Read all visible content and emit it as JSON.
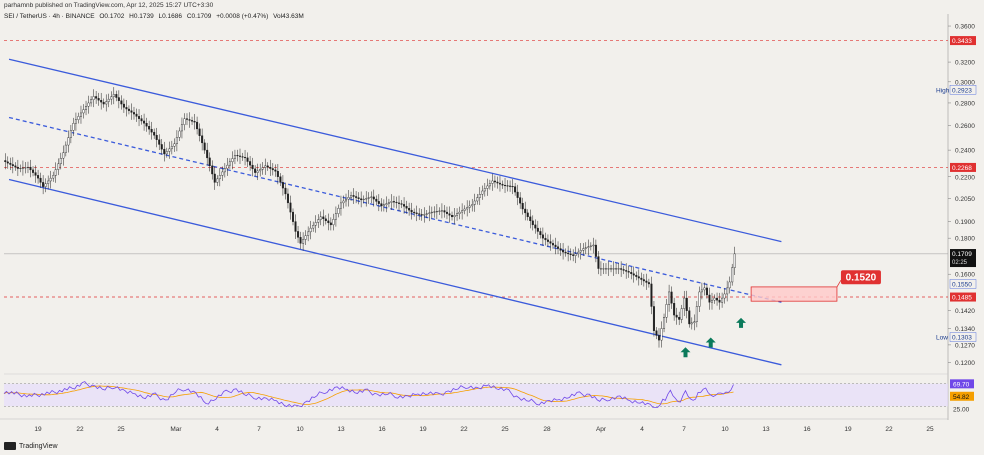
{
  "header": {
    "author_line": "parhamnb published on TradingView.com, Apr 12, 2025 15:27 UTC+3:30"
  },
  "legend": {
    "symbol": "SEI / TetherUS · 4h · BINANCE",
    "open": "O0.1702",
    "high": "H0.1739",
    "low": "L0.1686",
    "close": "C0.1709",
    "change": "+0.0008 (+0.47%)",
    "volume": "Vol43.63M"
  },
  "footer": {
    "brand": "TradingView"
  },
  "colors": {
    "background": "#f2f0ec",
    "up": "#1f1f1f",
    "down": "#1f1f1f",
    "channel": "#3b5bdb",
    "level_line": "#e03131",
    "level_label_bg": "#e03131",
    "price_label_bg": "#111111",
    "rsi_line": "#7048e8",
    "rsi_ma": "#f59f00",
    "rsi_band": "#e5dbff",
    "zone_fill": "#ffc9c9",
    "zone_border": "#e03131",
    "arrow": "#0b7a5b"
  },
  "chart_data": {
    "type": "candlestick",
    "symbol": "SEI / TetherUS",
    "interval": "4h",
    "exchange": "BINANCE",
    "y_scale": "log",
    "y_axis_ticks": [
      "0.3600",
      "0.3200",
      "0.3000",
      "0.2800",
      "0.2600",
      "0.2400",
      "0.2200",
      "0.2050",
      "0.1900",
      "0.1800",
      "0.1600",
      "0.1420",
      "0.1340",
      "0.1270",
      "0.1200"
    ],
    "x_axis_ticks": [
      "19",
      "22",
      "25",
      "Mar",
      "4",
      "7",
      "10",
      "13",
      "16",
      "19",
      "22",
      "25",
      "28",
      "Apr",
      "4",
      "7",
      "10",
      "13",
      "16",
      "19",
      "22",
      "25"
    ],
    "price_path": [
      [
        0,
        0.232
      ],
      [
        3,
        0.226
      ],
      [
        5,
        0.227
      ],
      [
        7,
        0.219
      ],
      [
        8,
        0.213
      ],
      [
        10,
        0.221
      ],
      [
        12,
        0.238
      ],
      [
        14,
        0.262
      ],
      [
        16,
        0.274
      ],
      [
        18,
        0.286
      ],
      [
        20,
        0.279
      ],
      [
        22,
        0.288
      ],
      [
        24,
        0.276
      ],
      [
        26,
        0.27
      ],
      [
        28,
        0.262
      ],
      [
        30,
        0.252
      ],
      [
        32,
        0.237
      ],
      [
        34,
        0.245
      ],
      [
        36,
        0.266
      ],
      [
        38,
        0.263
      ],
      [
        40,
        0.24
      ],
      [
        42,
        0.216
      ],
      [
        44,
        0.226
      ],
      [
        46,
        0.236
      ],
      [
        48,
        0.234
      ],
      [
        50,
        0.223
      ],
      [
        52,
        0.228
      ],
      [
        54,
        0.224
      ],
      [
        56,
        0.208
      ],
      [
        58,
        0.184
      ],
      [
        59,
        0.177
      ],
      [
        61,
        0.186
      ],
      [
        63,
        0.193
      ],
      [
        65,
        0.188
      ],
      [
        67,
        0.202
      ],
      [
        69,
        0.207
      ],
      [
        71,
        0.204
      ],
      [
        73,
        0.206
      ],
      [
        75,
        0.2
      ],
      [
        77,
        0.203
      ],
      [
        79,
        0.201
      ],
      [
        81,
        0.196
      ],
      [
        83,
        0.194
      ],
      [
        85,
        0.196
      ],
      [
        87,
        0.197
      ],
      [
        89,
        0.193
      ],
      [
        91,
        0.197
      ],
      [
        93,
        0.201
      ],
      [
        95,
        0.21
      ],
      [
        97,
        0.217
      ],
      [
        99,
        0.214
      ],
      [
        101,
        0.213
      ],
      [
        103,
        0.198
      ],
      [
        105,
        0.188
      ],
      [
        107,
        0.18
      ],
      [
        109,
        0.176
      ],
      [
        111,
        0.172
      ],
      [
        113,
        0.17
      ],
      [
        115,
        0.174
      ],
      [
        117,
        0.176
      ],
      [
        118,
        0.163
      ],
      [
        120,
        0.163
      ],
      [
        122,
        0.163
      ],
      [
        124,
        0.161
      ],
      [
        126,
        0.158
      ],
      [
        128,
        0.155
      ],
      [
        129,
        0.133
      ],
      [
        130,
        0.129
      ],
      [
        131,
        0.139
      ],
      [
        132,
        0.151
      ],
      [
        133,
        0.14
      ],
      [
        134,
        0.138
      ],
      [
        135,
        0.148
      ],
      [
        136,
        0.136
      ],
      [
        137,
        0.137
      ],
      [
        138,
        0.151
      ],
      [
        139,
        0.153
      ],
      [
        140,
        0.146
      ],
      [
        141,
        0.148
      ],
      [
        142,
        0.146
      ],
      [
        143,
        0.15
      ],
      [
        144,
        0.156
      ],
      [
        145,
        0.171
      ]
    ],
    "x_span_days": [
      0,
      187
    ],
    "price_range": [
      0.117,
      0.372
    ],
    "channel_upper": [
      [
        1,
        0.323
      ],
      [
        154,
        0.178
      ]
    ],
    "channel_mid": [
      [
        1,
        0.267
      ],
      [
        154,
        0.146
      ]
    ],
    "channel_lower": [
      [
        1,
        0.218
      ],
      [
        154,
        0.119
      ]
    ],
    "horizontal_levels": [
      {
        "price": 0.3433,
        "label": "0.3433"
      },
      {
        "price": 0.2268,
        "label": "0.2268"
      },
      {
        "price": 0.1485,
        "label": "0.1485"
      }
    ],
    "price_labels": [
      {
        "price": 0.2923,
        "text": "0.2923",
        "tag": "High"
      },
      {
        "price": 0.1709,
        "text": "0.1709",
        "sub": "02:25"
      },
      {
        "price": 0.155,
        "text": "0.1550"
      },
      {
        "price": 0.1303,
        "text": "0.1303",
        "tag": "Low"
      }
    ],
    "zone": {
      "x_from": 148,
      "x_to": 165,
      "price_top": 0.1535,
      "price_bottom": 0.1465
    },
    "zone_label": "0.1520",
    "arrows_up_x": [
      135,
      140,
      146
    ],
    "rsi": {
      "value_label": "69.70",
      "ma_label": "54.82",
      "level_label": "25.00",
      "upper_level": 70,
      "lower_level": 30,
      "ylim": [
        20,
        80
      ],
      "values": [
        [
          0,
          56
        ],
        [
          5,
          48
        ],
        [
          10,
          55
        ],
        [
          14,
          63
        ],
        [
          16,
          70
        ],
        [
          18,
          65
        ],
        [
          20,
          60
        ],
        [
          22,
          66
        ],
        [
          24,
          55
        ],
        [
          26,
          52
        ],
        [
          28,
          46
        ],
        [
          30,
          50
        ],
        [
          32,
          40
        ],
        [
          34,
          56
        ],
        [
          36,
          62
        ],
        [
          38,
          52
        ],
        [
          40,
          35
        ],
        [
          42,
          45
        ],
        [
          44,
          55
        ],
        [
          46,
          60
        ],
        [
          48,
          50
        ],
        [
          50,
          46
        ],
        [
          52,
          42
        ],
        [
          54,
          40
        ],
        [
          56,
          32
        ],
        [
          58,
          28
        ],
        [
          60,
          38
        ],
        [
          62,
          50
        ],
        [
          64,
          58
        ],
        [
          66,
          62
        ],
        [
          68,
          60
        ],
        [
          70,
          55
        ],
        [
          72,
          57
        ],
        [
          74,
          50
        ],
        [
          76,
          52
        ],
        [
          78,
          48
        ],
        [
          80,
          46
        ],
        [
          82,
          52
        ],
        [
          84,
          54
        ],
        [
          86,
          50
        ],
        [
          88,
          56
        ],
        [
          90,
          62
        ],
        [
          92,
          66
        ],
        [
          94,
          60
        ],
        [
          96,
          68
        ],
        [
          98,
          62
        ],
        [
          100,
          56
        ],
        [
          102,
          44
        ],
        [
          104,
          40
        ],
        [
          106,
          36
        ],
        [
          108,
          38
        ],
        [
          110,
          42
        ],
        [
          112,
          48
        ],
        [
          114,
          52
        ],
        [
          116,
          50
        ],
        [
          118,
          40
        ],
        [
          120,
          44
        ],
        [
          122,
          46
        ],
        [
          124,
          40
        ],
        [
          126,
          38
        ],
        [
          128,
          30
        ],
        [
          129,
          27
        ],
        [
          130,
          34
        ],
        [
          131,
          44
        ],
        [
          132,
          56
        ],
        [
          133,
          44
        ],
        [
          134,
          40
        ],
        [
          135,
          54
        ],
        [
          136,
          42
        ],
        [
          137,
          44
        ],
        [
          138,
          58
        ],
        [
          139,
          60
        ],
        [
          140,
          50
        ],
        [
          141,
          52
        ],
        [
          142,
          50
        ],
        [
          143,
          54
        ],
        [
          144,
          60
        ],
        [
          145,
          70
        ]
      ]
    }
  }
}
